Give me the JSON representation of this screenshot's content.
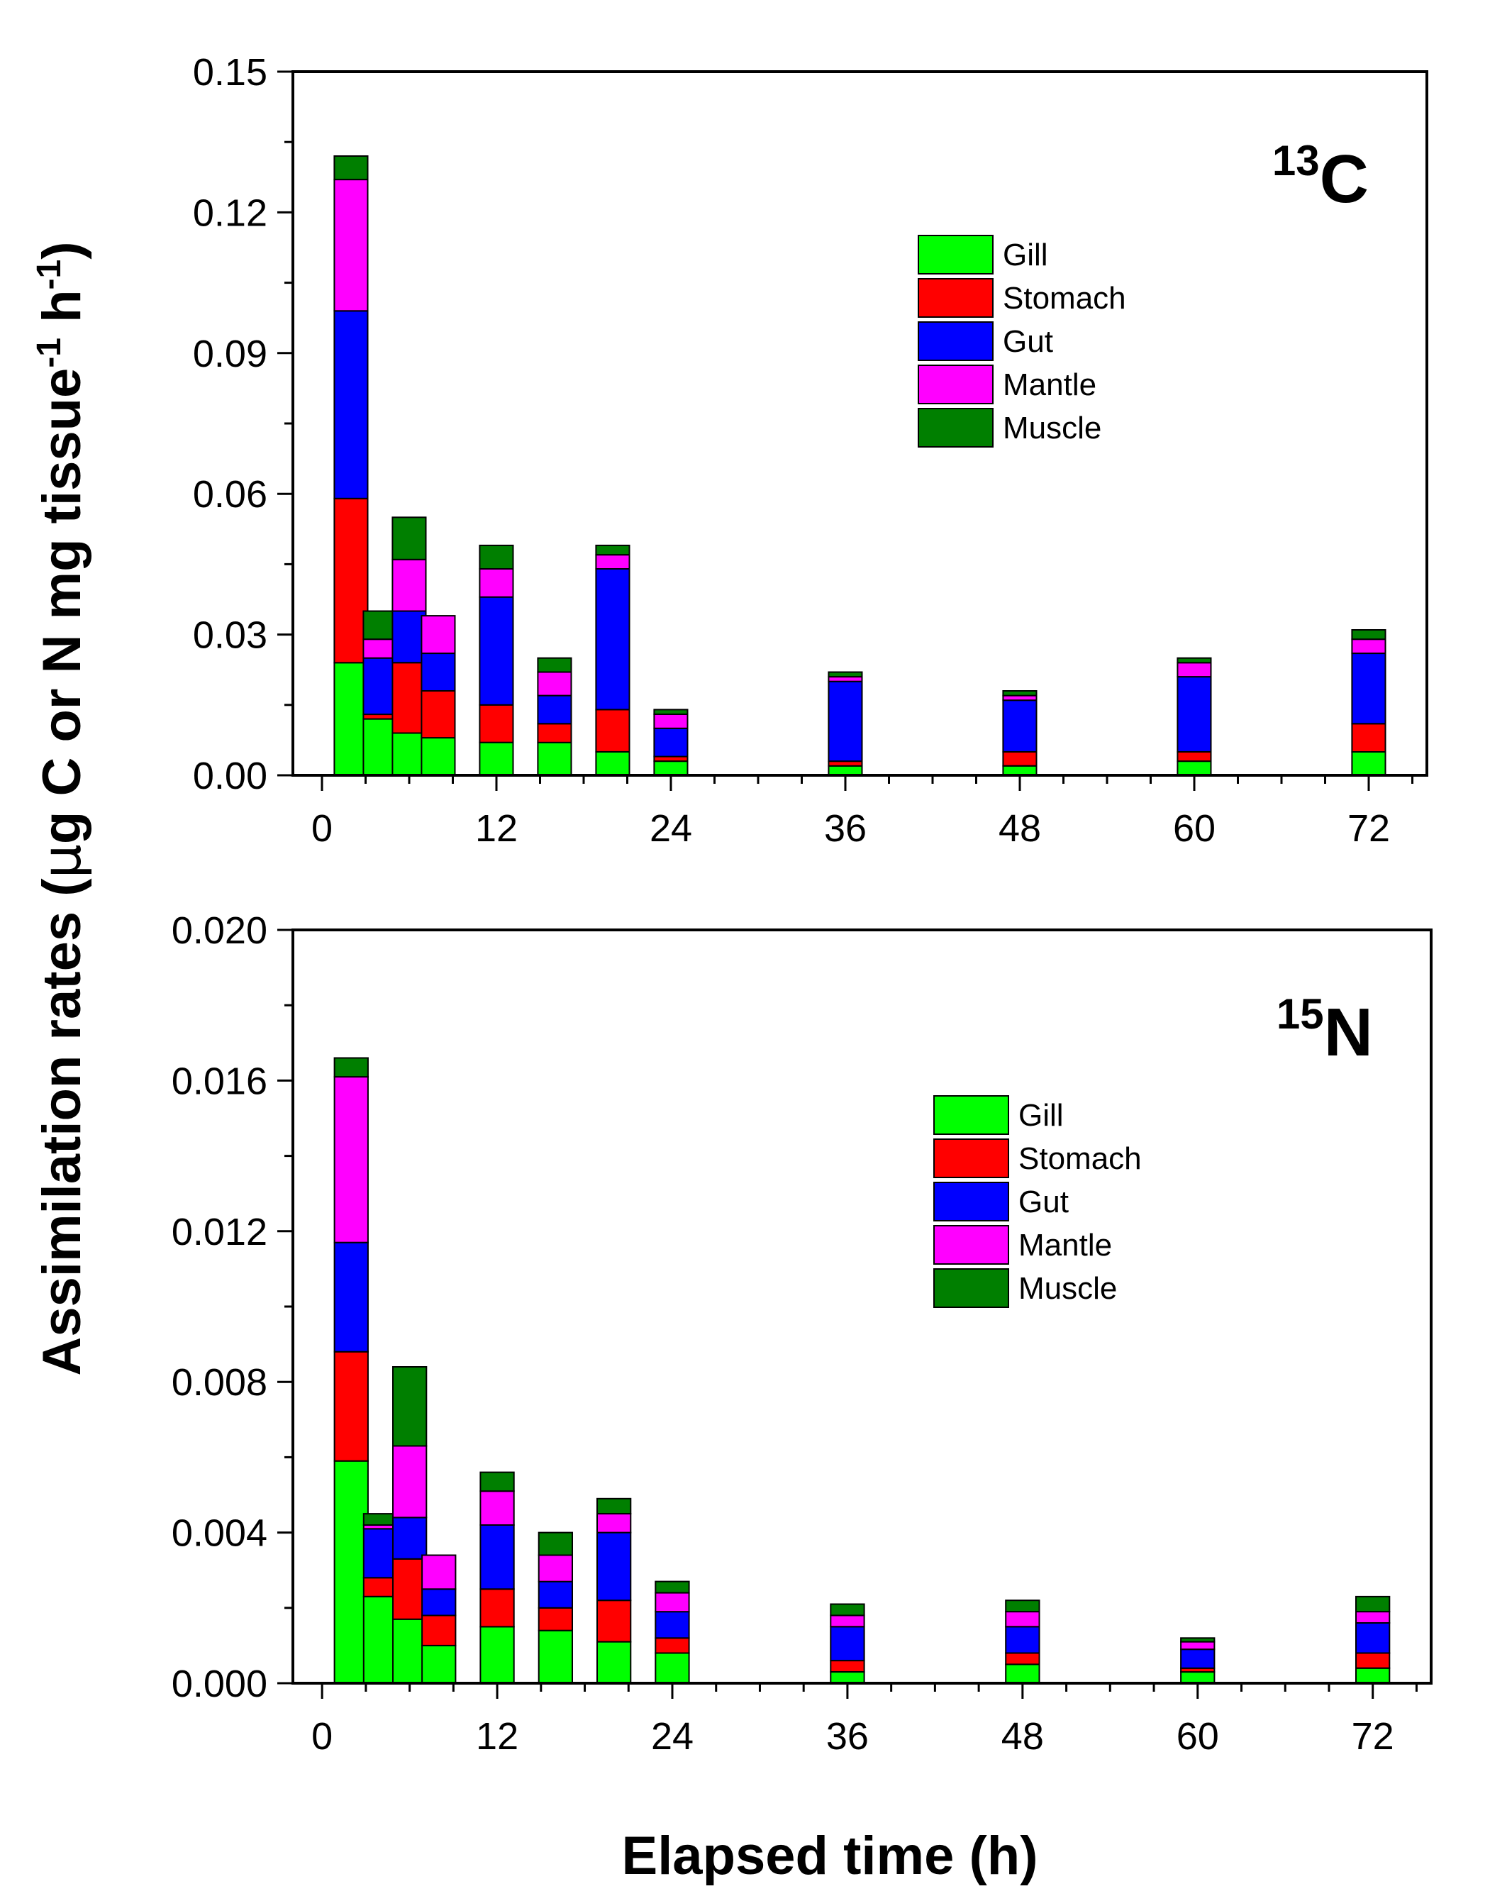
{
  "figure": {
    "ylabel_main": "Assimilation rates (",
    "ylabel_mu": "μ",
    "ylabel_rest": "g C or N mg tissue",
    "ylabel_sup1": "-1",
    "ylabel_h": " h",
    "ylabel_sup2": "-1",
    "ylabel_close": ")",
    "xlabel": "Elapsed time (h)"
  },
  "colors": {
    "Gill": "#00ff00",
    "Stomach": "#ff0000",
    "Gut": "#0000ff",
    "Mantle": "#ff00ff",
    "Muscle": "#007f00"
  },
  "chart_data": [
    {
      "type": "bar",
      "stacked": true,
      "panel": "13C",
      "label_mass": "13",
      "label_element": "C",
      "xlim": [
        -2,
        76
      ],
      "ylim": [
        0,
        0.15
      ],
      "xticks": [
        0,
        12,
        24,
        36,
        48,
        60,
        72
      ],
      "xtick_labels": [
        "0",
        "12",
        "24",
        "36",
        "48",
        "60",
        "72"
      ],
      "yticks": [
        0,
        0.03,
        0.06,
        0.09,
        0.12,
        0.15
      ],
      "ytick_labels": [
        "0.00",
        "0.03",
        "0.06",
        "0.09",
        "0.12",
        "0.15"
      ],
      "legend": [
        "Gill",
        "Stomach",
        "Gut",
        "Mantle",
        "Muscle"
      ],
      "legend_position": "upper-right",
      "bar_width_h": 2.3,
      "x": [
        2,
        4,
        6,
        8,
        12,
        16,
        20,
        24,
        36,
        48,
        60,
        72
      ],
      "series": [
        {
          "name": "Gill",
          "values": [
            0.024,
            0.012,
            0.009,
            0.008,
            0.007,
            0.007,
            0.005,
            0.003,
            0.002,
            0.002,
            0.003,
            0.005
          ]
        },
        {
          "name": "Stomach",
          "values": [
            0.035,
            0.001,
            0.015,
            0.01,
            0.008,
            0.004,
            0.009,
            0.001,
            0.001,
            0.003,
            0.002,
            0.006
          ]
        },
        {
          "name": "Gut",
          "values": [
            0.04,
            0.012,
            0.011,
            0.008,
            0.023,
            0.006,
            0.03,
            0.006,
            0.017,
            0.011,
            0.016,
            0.015
          ]
        },
        {
          "name": "Mantle",
          "values": [
            0.028,
            0.004,
            0.011,
            0.008,
            0.006,
            0.005,
            0.003,
            0.003,
            0.001,
            0.001,
            0.003,
            0.003
          ]
        },
        {
          "name": "Muscle",
          "values": [
            0.005,
            0.006,
            0.009,
            0.0,
            0.005,
            0.003,
            0.002,
            0.001,
            0.001,
            0.001,
            0.001,
            0.002
          ]
        }
      ]
    },
    {
      "type": "bar",
      "stacked": true,
      "panel": "15N",
      "label_mass": "15",
      "label_element": "N",
      "xlim": [
        -2,
        76
      ],
      "ylim": [
        0,
        0.02
      ],
      "xticks": [
        0,
        12,
        24,
        36,
        48,
        60,
        72
      ],
      "xtick_labels": [
        "0",
        "12",
        "24",
        "36",
        "48",
        "60",
        "72"
      ],
      "yticks": [
        0,
        0.004,
        0.008,
        0.012,
        0.016,
        0.02
      ],
      "ytick_labels": [
        "0.000",
        "0.004",
        "0.008",
        "0.012",
        "0.016",
        "0.020"
      ],
      "legend": [
        "Gill",
        "Stomach",
        "Gut",
        "Mantle",
        "Muscle"
      ],
      "legend_position": "upper-right",
      "bar_width_h": 2.3,
      "x": [
        2,
        4,
        6,
        8,
        12,
        16,
        20,
        24,
        36,
        48,
        60,
        72
      ],
      "series": [
        {
          "name": "Gill",
          "values": [
            0.0059,
            0.0023,
            0.0017,
            0.001,
            0.0015,
            0.0014,
            0.0011,
            0.0008,
            0.0003,
            0.0005,
            0.0003,
            0.0004
          ]
        },
        {
          "name": "Stomach",
          "values": [
            0.0029,
            0.0005,
            0.0016,
            0.0008,
            0.001,
            0.0006,
            0.0011,
            0.0004,
            0.0003,
            0.0003,
            0.0001,
            0.0004
          ]
        },
        {
          "name": "Gut",
          "values": [
            0.0029,
            0.0013,
            0.0011,
            0.0007,
            0.0017,
            0.0007,
            0.0018,
            0.0007,
            0.0009,
            0.0007,
            0.0005,
            0.0008
          ]
        },
        {
          "name": "Mantle",
          "values": [
            0.0044,
            0.0001,
            0.0019,
            0.0009,
            0.0009,
            0.0007,
            0.0005,
            0.0005,
            0.0003,
            0.0004,
            0.0002,
            0.0003
          ]
        },
        {
          "name": "Muscle",
          "values": [
            0.0005,
            0.0003,
            0.0021,
            0.0,
            0.0005,
            0.0006,
            0.0004,
            0.0003,
            0.0003,
            0.0003,
            0.0001,
            0.0004
          ]
        }
      ]
    }
  ]
}
